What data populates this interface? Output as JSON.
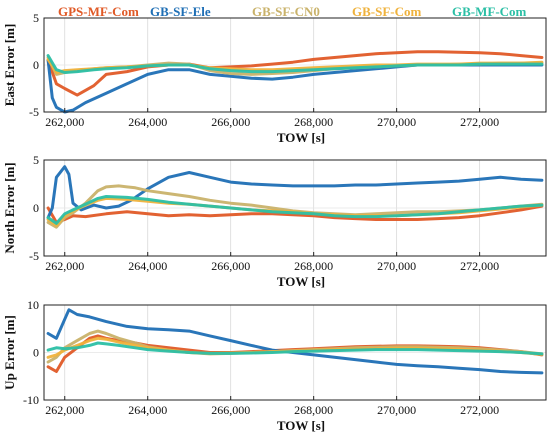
{
  "legend": [
    {
      "label": "GPS-MF-Com",
      "color": "#e05a27"
    },
    {
      "label": "GB-SF-Ele",
      "color": "#1f6fb5"
    },
    {
      "label": "GB-SF-CN0",
      "color": "#c9b26a"
    },
    {
      "label": "GB-SF-Com",
      "color": "#efb23c"
    },
    {
      "label": "GB-MF-Com",
      "color": "#2bbfa5"
    }
  ],
  "chart_data": [
    {
      "type": "line",
      "xlabel": "TOW [s]",
      "ylabel": "East Error [m]",
      "xlim": [
        261500,
        273600
      ],
      "ylim": [
        -5,
        5
      ],
      "xticks": [
        "262,000",
        "264,000",
        "266,000",
        "268,000",
        "270,000",
        "272,000"
      ],
      "yticks": [
        "-5",
        "0",
        "5"
      ],
      "grid": true,
      "series": [
        {
          "name": "GPS-MF-Com",
          "color": "#e05a27",
          "x": [
            261600,
            261800,
            262000,
            262300,
            262700,
            263000,
            263500,
            264000,
            264500,
            265000,
            265500,
            266000,
            266500,
            267000,
            267500,
            268000,
            268500,
            269000,
            269500,
            270000,
            270500,
            271000,
            271500,
            272000,
            272500,
            273000,
            273500
          ],
          "y": [
            0.5,
            -2.0,
            -2.5,
            -3.2,
            -2.2,
            -1.0,
            -0.7,
            -0.2,
            0.0,
            0.1,
            -0.3,
            -0.2,
            -0.1,
            0.1,
            0.3,
            0.6,
            0.8,
            1.0,
            1.2,
            1.3,
            1.4,
            1.4,
            1.35,
            1.3,
            1.2,
            1.0,
            0.8
          ]
        },
        {
          "name": "GB-SF-Ele",
          "color": "#1f6fb5",
          "x": [
            261600,
            261700,
            261800,
            262000,
            262200,
            262500,
            263000,
            263500,
            264000,
            264500,
            265000,
            265500,
            266000,
            266500,
            267000,
            267500,
            268000,
            268500,
            269000,
            269500,
            270000,
            270500,
            271000,
            271500,
            272000,
            272500,
            273000,
            273500
          ],
          "y": [
            0.5,
            -3.5,
            -4.5,
            -5.0,
            -4.8,
            -4.0,
            -3.0,
            -2.0,
            -1.0,
            -0.5,
            -0.5,
            -1.0,
            -1.2,
            -1.4,
            -1.5,
            -1.3,
            -1.0,
            -0.8,
            -0.6,
            -0.4,
            -0.2,
            0.0,
            0.0,
            0.0,
            0.0,
            0.0,
            0.0,
            0.0
          ]
        },
        {
          "name": "GB-SF-CN0",
          "color": "#c9b26a",
          "x": [
            261600,
            261800,
            262000,
            262300,
            262700,
            263000,
            263500,
            264000,
            264500,
            265000,
            265500,
            266000,
            266500,
            267000,
            267500,
            268000,
            268500,
            269000,
            269500,
            270000,
            270500,
            271000,
            271500,
            272000,
            272500,
            273000,
            273500
          ],
          "y": [
            0.8,
            -1.0,
            -0.8,
            -0.6,
            -0.4,
            -0.3,
            -0.2,
            0.0,
            0.2,
            0.1,
            -0.6,
            -0.9,
            -1.0,
            -0.9,
            -0.8,
            -0.6,
            -0.4,
            -0.3,
            -0.2,
            -0.1,
            0.0,
            0.0,
            0.1,
            0.1,
            0.2,
            0.2,
            0.2
          ]
        },
        {
          "name": "GB-SF-Com",
          "color": "#efb23c",
          "x": [
            261600,
            261800,
            262000,
            262300,
            262700,
            263000,
            263500,
            264000,
            264500,
            265000,
            265500,
            266000,
            266500,
            267000,
            267500,
            268000,
            268500,
            269000,
            269500,
            270000,
            270500,
            271000,
            271500,
            272000,
            272500,
            273000,
            273500
          ],
          "y": [
            0.6,
            -0.8,
            -0.6,
            -0.5,
            -0.4,
            -0.3,
            -0.2,
            -0.1,
            0.0,
            0.0,
            -0.3,
            -0.4,
            -0.5,
            -0.5,
            -0.4,
            -0.3,
            -0.2,
            -0.1,
            0.0,
            0.0,
            0.1,
            0.1,
            0.1,
            0.2,
            0.2,
            0.2,
            0.3
          ]
        },
        {
          "name": "GB-MF-Com",
          "color": "#2bbfa5",
          "x": [
            261600,
            261800,
            262000,
            262300,
            262700,
            263000,
            263500,
            264000,
            264500,
            265000,
            265500,
            266000,
            266500,
            267000,
            267500,
            268000,
            268500,
            269000,
            269500,
            270000,
            270500,
            271000,
            271500,
            272000,
            272500,
            273000,
            273500
          ],
          "y": [
            1.0,
            -0.5,
            -0.8,
            -0.7,
            -0.5,
            -0.4,
            -0.3,
            -0.1,
            0.0,
            0.0,
            -0.4,
            -0.6,
            -0.7,
            -0.7,
            -0.6,
            -0.5,
            -0.4,
            -0.3,
            -0.2,
            -0.1,
            0.0,
            0.0,
            0.0,
            0.1,
            0.1,
            0.1,
            0.1
          ]
        }
      ]
    },
    {
      "type": "line",
      "xlabel": "TOW [s]",
      "ylabel": "North Error [m]",
      "xlim": [
        261500,
        273600
      ],
      "ylim": [
        -5,
        5
      ],
      "xticks": [
        "262,000",
        "264,000",
        "266,000",
        "268,000",
        "270,000",
        "272,000"
      ],
      "yticks": [
        "-5",
        "0",
        "5"
      ],
      "grid": true,
      "series": [
        {
          "name": "GPS-MF-Com",
          "color": "#e05a27",
          "x": [
            261600,
            261800,
            262000,
            262200,
            262500,
            263000,
            263500,
            264000,
            264500,
            265000,
            265500,
            266000,
            266500,
            267000,
            267500,
            268000,
            268500,
            269000,
            269500,
            270000,
            270500,
            271000,
            271500,
            272000,
            272500,
            273000,
            273500
          ],
          "y": [
            0.0,
            -1.5,
            -1.2,
            -0.8,
            -0.9,
            -0.6,
            -0.4,
            -0.6,
            -0.8,
            -0.7,
            -0.8,
            -0.7,
            -0.6,
            -0.6,
            -0.7,
            -0.8,
            -1.0,
            -1.1,
            -1.2,
            -1.2,
            -1.2,
            -1.1,
            -1.0,
            -0.8,
            -0.5,
            -0.2,
            0.2
          ]
        },
        {
          "name": "GB-SF-Ele",
          "color": "#1f6fb5",
          "x": [
            261600,
            261700,
            261800,
            262000,
            262100,
            262200,
            262400,
            262700,
            263000,
            263300,
            263600,
            264000,
            264500,
            265000,
            265500,
            266000,
            266500,
            267000,
            267500,
            268000,
            268500,
            269000,
            269500,
            270000,
            270500,
            271000,
            271500,
            272000,
            272500,
            273000,
            273500
          ],
          "y": [
            -1.0,
            0.0,
            3.2,
            4.3,
            3.5,
            0.5,
            -0.2,
            0.3,
            0.0,
            0.2,
            0.8,
            2.0,
            3.2,
            3.7,
            3.2,
            2.7,
            2.5,
            2.4,
            2.3,
            2.3,
            2.3,
            2.4,
            2.4,
            2.5,
            2.6,
            2.7,
            2.8,
            3.0,
            3.2,
            3.0,
            2.9
          ]
        },
        {
          "name": "GB-SF-CN0",
          "color": "#c9b26a",
          "x": [
            261600,
            261800,
            262000,
            262200,
            262500,
            262800,
            263000,
            263300,
            263700,
            264000,
            264500,
            265000,
            265500,
            266000,
            266500,
            267000,
            267500,
            268000,
            268500,
            269000,
            269500,
            270000,
            270500,
            271000,
            271500,
            272000,
            272500,
            273000,
            273500
          ],
          "y": [
            -1.5,
            -2.0,
            -1.0,
            -0.5,
            0.5,
            1.8,
            2.2,
            2.3,
            2.1,
            1.8,
            1.5,
            1.2,
            0.8,
            0.5,
            0.3,
            0.0,
            -0.3,
            -0.5,
            -0.6,
            -0.7,
            -0.6,
            -0.5,
            -0.4,
            -0.4,
            -0.3,
            -0.2,
            0.0,
            0.2,
            0.4
          ]
        },
        {
          "name": "GB-SF-Com",
          "color": "#efb23c",
          "x": [
            261600,
            261800,
            262000,
            262200,
            262500,
            262800,
            263000,
            263500,
            264000,
            264500,
            265000,
            265500,
            266000,
            266500,
            267000,
            267500,
            268000,
            268500,
            269000,
            269500,
            270000,
            270500,
            271000,
            271500,
            272000,
            272500,
            273000,
            273500
          ],
          "y": [
            -1.2,
            -1.8,
            -0.8,
            -0.3,
            0.3,
            0.8,
            1.0,
            0.9,
            0.7,
            0.5,
            0.4,
            0.2,
            0.0,
            -0.2,
            -0.3,
            -0.4,
            -0.6,
            -0.7,
            -0.8,
            -0.8,
            -0.8,
            -0.7,
            -0.6,
            -0.5,
            -0.3,
            -0.1,
            0.1,
            0.3
          ]
        },
        {
          "name": "GB-MF-Com",
          "color": "#2bbfa5",
          "x": [
            261600,
            261800,
            262000,
            262200,
            262500,
            262800,
            263000,
            263500,
            264000,
            264500,
            265000,
            265500,
            266000,
            266500,
            267000,
            267500,
            268000,
            268500,
            269000,
            269500,
            270000,
            270500,
            271000,
            271500,
            272000,
            272500,
            273000,
            273500
          ],
          "y": [
            -1.0,
            -1.6,
            -0.6,
            -0.2,
            0.4,
            1.0,
            1.2,
            1.1,
            0.9,
            0.6,
            0.4,
            0.2,
            0.0,
            -0.2,
            -0.4,
            -0.5,
            -0.6,
            -0.8,
            -0.9,
            -0.9,
            -0.8,
            -0.7,
            -0.6,
            -0.4,
            -0.2,
            0.0,
            0.2,
            0.3
          ]
        }
      ]
    },
    {
      "type": "line",
      "xlabel": "TOW [s]",
      "ylabel": "Up Error [m]",
      "xlim": [
        261500,
        273600
      ],
      "ylim": [
        -10,
        10
      ],
      "xticks": [
        "262,000",
        "264,000",
        "266,000",
        "268,000",
        "270,000",
        "272,000"
      ],
      "yticks": [
        "-10",
        "0",
        "10"
      ],
      "grid": true,
      "series": [
        {
          "name": "GPS-MF-Com",
          "color": "#e05a27",
          "x": [
            261600,
            261800,
            262000,
            262300,
            262600,
            262800,
            263000,
            263300,
            263700,
            264000,
            264500,
            265000,
            265500,
            266000,
            266500,
            267000,
            267500,
            268000,
            268500,
            269000,
            269500,
            270000,
            270500,
            271000,
            271500,
            272000,
            272500,
            273000,
            273500
          ],
          "y": [
            -3.0,
            -4.0,
            -1.0,
            1.0,
            3.0,
            3.5,
            3.0,
            2.5,
            2.0,
            1.5,
            1.0,
            0.5,
            0.0,
            0.0,
            0.2,
            0.4,
            0.6,
            0.8,
            1.0,
            1.2,
            1.3,
            1.4,
            1.4,
            1.3,
            1.2,
            1.0,
            0.6,
            0.2,
            -0.5
          ]
        },
        {
          "name": "GB-SF-Ele",
          "color": "#1f6fb5",
          "x": [
            261600,
            261800,
            262000,
            262100,
            262300,
            262600,
            263000,
            263500,
            264000,
            264500,
            265000,
            265500,
            266000,
            266500,
            267000,
            267500,
            268000,
            268500,
            269000,
            269500,
            270000,
            270500,
            271000,
            271500,
            272000,
            272500,
            273000,
            273500
          ],
          "y": [
            4.0,
            3.0,
            7.0,
            9.0,
            8.0,
            7.5,
            6.5,
            5.5,
            5.0,
            4.8,
            4.5,
            3.5,
            2.5,
            1.5,
            0.5,
            0.0,
            -0.5,
            -1.0,
            -1.5,
            -2.0,
            -2.5,
            -2.8,
            -3.0,
            -3.3,
            -3.6,
            -4.0,
            -4.2,
            -4.3
          ]
        },
        {
          "name": "GB-SF-CN0",
          "color": "#c9b26a",
          "x": [
            261600,
            261800,
            262000,
            262300,
            262600,
            262800,
            263000,
            263300,
            263700,
            264000,
            264500,
            265000,
            265500,
            266000,
            266500,
            267000,
            267500,
            268000,
            268500,
            269000,
            269500,
            270000,
            270500,
            271000,
            271500,
            272000,
            272500,
            273000,
            273500
          ],
          "y": [
            -2.0,
            -1.0,
            1.0,
            2.5,
            4.0,
            4.5,
            4.0,
            3.0,
            2.0,
            1.2,
            0.5,
            0.0,
            -0.3,
            -0.2,
            0.0,
            0.2,
            0.4,
            0.6,
            0.8,
            1.0,
            1.1,
            1.2,
            1.2,
            1.1,
            1.0,
            0.8,
            0.5,
            0.2,
            -0.3
          ]
        },
        {
          "name": "GB-SF-Com",
          "color": "#efb23c",
          "x": [
            261600,
            261800,
            262000,
            262300,
            262600,
            262800,
            263000,
            263300,
            263700,
            264000,
            264500,
            265000,
            265500,
            266000,
            266500,
            267000,
            267500,
            268000,
            268500,
            269000,
            269500,
            270000,
            270500,
            271000,
            271500,
            272000,
            272500,
            273000,
            273500
          ],
          "y": [
            -1.0,
            -0.5,
            0.5,
            1.5,
            2.5,
            3.0,
            2.8,
            2.2,
            1.5,
            1.0,
            0.5,
            0.0,
            -0.2,
            -0.1,
            0.0,
            0.2,
            0.3,
            0.5,
            0.6,
            0.7,
            0.8,
            0.9,
            0.9,
            0.8,
            0.7,
            0.5,
            0.3,
            0.0,
            -0.4
          ]
        },
        {
          "name": "GB-MF-Com",
          "color": "#2bbfa5",
          "x": [
            261600,
            261800,
            262000,
            262300,
            262600,
            262800,
            263000,
            263300,
            263700,
            264000,
            264500,
            265000,
            265500,
            266000,
            266500,
            267000,
            267500,
            268000,
            268500,
            269000,
            269500,
            270000,
            270500,
            271000,
            271500,
            272000,
            272500,
            273000,
            273500
          ],
          "y": [
            0.5,
            1.0,
            0.8,
            1.0,
            1.5,
            2.0,
            1.8,
            1.5,
            1.0,
            0.6,
            0.3,
            0.0,
            -0.2,
            -0.2,
            -0.1,
            0.0,
            0.2,
            0.3,
            0.4,
            0.5,
            0.6,
            0.6,
            0.6,
            0.5,
            0.4,
            0.3,
            0.2,
            0.0,
            -0.3
          ]
        }
      ]
    }
  ]
}
